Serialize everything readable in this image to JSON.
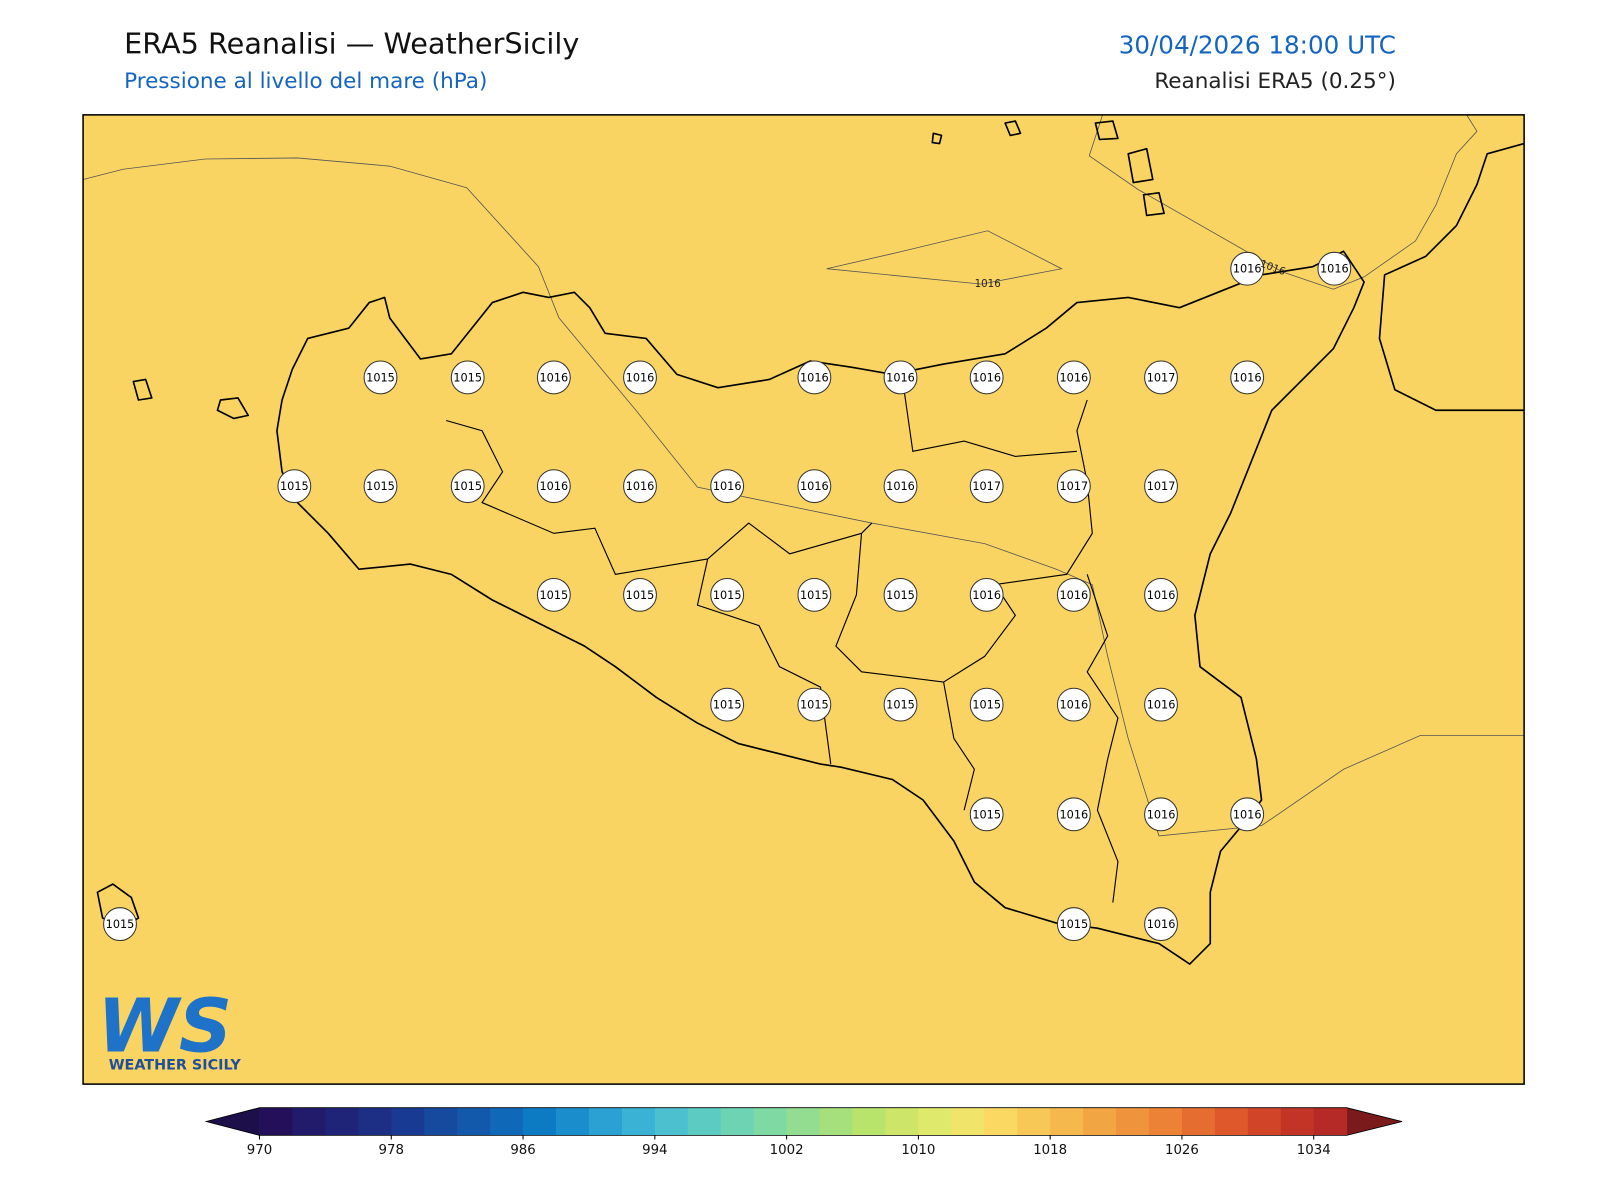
{
  "header": {
    "title": "ERA5 Reanalisi — WeatherSicily",
    "subtitle": "Pressione al livello del mare (hPa)",
    "datetime": "30/04/2026 18:00 UTC",
    "source": "Reanalisi ERA5 (0.25°)"
  },
  "map": {
    "stations": [
      1016,
      1016,
      1015,
      1015,
      1016,
      1016,
      1016,
      1016,
      1016,
      1016,
      1017,
      1016,
      1015,
      1015,
      1015,
      1016,
      1016,
      1016,
      1016,
      1016,
      1017,
      1017,
      1017,
      1015,
      1015,
      1015,
      1015,
      1015,
      1016,
      1016,
      1016,
      1015,
      1015,
      1015,
      1015,
      1016,
      1016,
      1015,
      1016,
      1016,
      1016,
      1015,
      1016,
      1015
    ],
    "contour_labels": [
      "1016",
      "1016"
    ]
  },
  "logo": {
    "mark": "WS",
    "text": "WEATHER SICILY"
  },
  "colorbar": {
    "lim": [
      970,
      1036
    ],
    "ticks": [
      970,
      978,
      986,
      994,
      1002,
      1010,
      1018,
      1026,
      1034
    ],
    "under": "#1c0f4a",
    "over": "#7a1a1a",
    "colors": [
      "#24105a",
      "#221a6b",
      "#1f2478",
      "#1c2f85",
      "#183a92",
      "#154a9f",
      "#1259ac",
      "#0f69b8",
      "#0d7bc4",
      "#1a8ecc",
      "#2ba0d3",
      "#3ab2d6",
      "#4cc0cf",
      "#5ccbc2",
      "#6dd3b3",
      "#7fd9a2",
      "#92dd8f",
      "#a6e07d",
      "#b9e46c",
      "#cde66a",
      "#dfe96c",
      "#f0e46a",
      "#fbd862",
      "#f8c856",
      "#f5b84c",
      "#f2a543",
      "#ef933c",
      "#ec8236",
      "#e66d30",
      "#de582b",
      "#d14428",
      "#c33426",
      "#b52a26"
    ]
  }
}
